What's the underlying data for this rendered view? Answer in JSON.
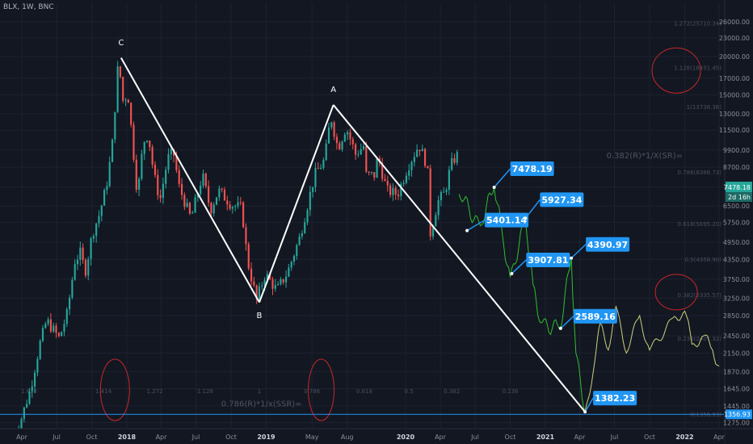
{
  "header": {
    "symbol_label": "BLX, 1W, BNC"
  },
  "chart_data": {
    "type": "candlestick",
    "title": "BLX, 1W, BNC",
    "xlabel": "",
    "ylabel": "",
    "y_scale": "log",
    "ylim": [
      1290,
      30000
    ],
    "y_ticks": [
      1275,
      1445,
      1645,
      1870,
      2150,
      2450,
      2850,
      3250,
      3750,
      4350,
      4950,
      5750,
      6500,
      7500,
      8700,
      9900,
      11500,
      13000,
      15000,
      17000,
      20000,
      23000,
      26000
    ],
    "x_ticks": [
      {
        "label": "Apr",
        "date": "2017-04-01"
      },
      {
        "label": "Jul",
        "date": "2017-07-01"
      },
      {
        "label": "Oct",
        "date": "2017-10-01"
      },
      {
        "label": "2018",
        "date": "2018-01-01",
        "bold": true
      },
      {
        "label": "Apr",
        "date": "2018-04-01"
      },
      {
        "label": "Jul",
        "date": "2018-07-01"
      },
      {
        "label": "Oct",
        "date": "2018-10-01"
      },
      {
        "label": "2019",
        "date": "2019-01-01",
        "bold": true
      },
      {
        "label": "May",
        "date": "2019-05-01"
      },
      {
        "label": "Aug",
        "date": "2019-08-01"
      },
      {
        "label": "2020",
        "date": "2020-01-01",
        "bold": true
      },
      {
        "label": "Apr",
        "date": "2020-04-01"
      },
      {
        "label": "Jul",
        "date": "2020-07-01"
      },
      {
        "label": "Oct",
        "date": "2020-10-01"
      },
      {
        "label": "2021",
        "date": "2021-01-01",
        "bold": true
      },
      {
        "label": "Apr",
        "date": "2021-04-01"
      },
      {
        "label": "Jul",
        "date": "2021-07-01"
      },
      {
        "label": "Oct",
        "date": "2021-10-01"
      },
      {
        "label": "2022",
        "date": "2022-01-01",
        "bold": true
      },
      {
        "label": "Apr",
        "date": "2022-04-01"
      }
    ],
    "price_anchors": [
      [
        "2017-03-10",
        1150
      ],
      [
        "2017-04-01",
        1250
      ],
      [
        "2017-05-01",
        1650
      ],
      [
        "2017-05-25",
        2300
      ],
      [
        "2017-06-12",
        2750
      ],
      [
        "2017-07-15",
        2400
      ],
      [
        "2017-08-05",
        2900
      ],
      [
        "2017-08-25",
        4300
      ],
      [
        "2017-09-10",
        4600
      ],
      [
        "2017-09-20",
        3900
      ],
      [
        "2017-10-10",
        5300
      ],
      [
        "2017-10-28",
        6100
      ],
      [
        "2017-11-15",
        7500
      ],
      [
        "2017-11-30",
        10000
      ],
      [
        "2017-12-17",
        19500
      ],
      [
        "2017-12-30",
        14000
      ],
      [
        "2018-01-10",
        15500
      ],
      [
        "2018-01-20",
        11500
      ],
      [
        "2018-02-05",
        7000
      ],
      [
        "2018-02-20",
        10500
      ],
      [
        "2018-03-05",
        11200
      ],
      [
        "2018-03-20",
        8200
      ],
      [
        "2018-04-05",
        6800
      ],
      [
        "2018-04-25",
        9300
      ],
      [
        "2018-05-10",
        9700
      ],
      [
        "2018-05-25",
        7500
      ],
      [
        "2018-06-25",
        5900
      ],
      [
        "2018-07-25",
        8200
      ],
      [
        "2018-08-15",
        6300
      ],
      [
        "2018-09-05",
        7300
      ],
      [
        "2018-10-10",
        6550
      ],
      [
        "2018-11-05",
        6400
      ],
      [
        "2018-11-20",
        4300
      ],
      [
        "2018-12-14",
        3200
      ],
      [
        "2019-01-05",
        3900
      ],
      [
        "2019-02-05",
        3450
      ],
      [
        "2019-03-05",
        3950
      ],
      [
        "2019-04-05",
        5100
      ],
      [
        "2019-05-15",
        8200
      ],
      [
        "2019-06-10",
        9200
      ],
      [
        "2019-06-26",
        12800
      ],
      [
        "2019-07-15",
        10000
      ],
      [
        "2019-08-05",
        11800
      ],
      [
        "2019-08-30",
        9600
      ],
      [
        "2019-09-20",
        10200
      ],
      [
        "2019-09-26",
        8200
      ],
      [
        "2019-10-20",
        8200
      ],
      [
        "2019-10-27",
        9500
      ],
      [
        "2019-11-20",
        7300
      ],
      [
        "2019-12-18",
        7100
      ],
      [
        "2020-01-15",
        8800
      ],
      [
        "2020-02-12",
        10300
      ],
      [
        "2020-03-05",
        8800
      ],
      [
        "2020-03-13",
        5300
      ],
      [
        "2020-04-01",
        6700
      ],
      [
        "2020-04-20",
        7200
      ],
      [
        "2020-05-05",
        8800
      ],
      [
        "2020-05-20",
        9500
      ]
    ],
    "lines": [
      {
        "name": "C-B",
        "points": [
          [
            "2017-12-17",
            19800
          ],
          [
            "2018-12-14",
            3150
          ]
        ]
      },
      {
        "name": "B-A",
        "points": [
          [
            "2018-12-14",
            3150
          ],
          [
            "2019-06-26",
            13900
          ]
        ]
      },
      {
        "name": "A-D",
        "points": [
          [
            "2019-06-26",
            13900
          ],
          [
            "2021-04-15",
            1382.23
          ]
        ]
      }
    ],
    "point_labels": [
      {
        "text": "C",
        "date": "2017-12-17",
        "price": 21800
      },
      {
        "text": "B",
        "date": "2018-12-14",
        "price": 2800
      },
      {
        "text": "A",
        "date": "2019-06-26",
        "price": 15300
      }
    ],
    "projection_green": [
      [
        "2020-05-20",
        7100
      ],
      [
        "2020-07-15",
        5600
      ],
      [
        "2020-08-20",
        7478.19
      ],
      [
        "2020-09-10",
        5300
      ],
      [
        "2020-10-01",
        3800
      ],
      [
        "2020-11-10",
        5927.34
      ],
      [
        "2020-11-30",
        3600
      ],
      [
        "2020-12-20",
        2700
      ],
      [
        "2021-02-10",
        2600
      ],
      [
        "2021-03-10",
        4390.97
      ],
      [
        "2021-03-22",
        2150
      ],
      [
        "2021-04-15",
        1382.23
      ]
    ],
    "projection_yellow": [
      [
        "2021-04-15",
        1382.23
      ],
      [
        "2021-05-10",
        2000
      ],
      [
        "2021-05-25",
        2700
      ],
      [
        "2021-06-15",
        2200
      ],
      [
        "2021-07-05",
        3050
      ],
      [
        "2021-08-01",
        2150
      ],
      [
        "2021-09-05",
        2850
      ],
      [
        "2021-10-01",
        2200
      ],
      [
        "2021-12-01",
        2800
      ],
      [
        "2022-01-01",
        2950
      ],
      [
        "2022-01-20",
        2300
      ],
      [
        "2022-02-20",
        2450
      ],
      [
        "2022-03-15",
        2200
      ],
      [
        "2022-04-01",
        1950
      ]
    ],
    "callouts": [
      {
        "label": "7478.19",
        "date": "2020-08-20",
        "price": 7478.19
      },
      {
        "label": "5401.14",
        "date": "2020-06-10",
        "price": 5401.14
      },
      {
        "label": "5927.34",
        "date": "2020-11-10",
        "price": 5927.34
      },
      {
        "label": "3907.81",
        "date": "2020-10-05",
        "price": 3907.81
      },
      {
        "label": "4390.97",
        "date": "2021-03-10",
        "price": 4390.97
      },
      {
        "label": "2589.16",
        "date": "2021-02-10",
        "price": 2589.16
      },
      {
        "label": "1382.23",
        "date": "2021-04-15",
        "price": 1382.23
      }
    ],
    "horizontal_line": {
      "price": 1356.93,
      "label": "1356.93"
    },
    "last_price": {
      "value": "7478.18",
      "countdown": "2d 16h"
    },
    "fib_right": [
      {
        "text": "1.272(25710.34)",
        "price": 25710
      },
      {
        "text": "1.128(18451.45)",
        "price": 18451
      },
      {
        "text": "1(13738.36)",
        "price": 13738
      },
      {
        "text": "0.786(8388.73)",
        "price": 8388
      },
      {
        "text": "0.618(5695.20)",
        "price": 5695
      },
      {
        "text": "0.5(4358.90)",
        "price": 4359
      },
      {
        "text": "0.382(3335.57)",
        "price": 3336
      },
      {
        "text": "0.236(2407.32)",
        "price": 2407
      },
      {
        "text": "0(1356.93)",
        "price": 1357
      }
    ],
    "fib_bottom": [
      {
        "text": "1.618",
        "date": "2017-04-20"
      },
      {
        "text": "1.414",
        "date": "2017-11-01"
      },
      {
        "text": "1.272",
        "date": "2018-03-15"
      },
      {
        "text": "1.128",
        "date": "2018-07-25"
      },
      {
        "text": "1",
        "date": "2018-12-14"
      },
      {
        "text": "0.786",
        "date": "2019-05-01"
      },
      {
        "text": "0.618",
        "date": "2019-09-15"
      },
      {
        "text": "0.5",
        "date": "2020-01-10"
      },
      {
        "text": "0.382",
        "date": "2020-05-01"
      },
      {
        "text": "0.236",
        "date": "2020-10-01"
      }
    ],
    "annotations": [
      {
        "text": "0.382(R)*1/X(SR)=",
        "date": "2021-06-10",
        "price": 9300
      },
      {
        "text": "0.786(R)*1/x(SSR)=",
        "date": "2018-09-05",
        "price": 1440
      }
    ],
    "ellipses": [
      {
        "date": "2017-12-01",
        "price": 1630
      },
      {
        "date": "2019-05-25",
        "price": 1630
      },
      {
        "date": "2021-12-10",
        "price": 18000
      },
      {
        "date": "2021-12-10",
        "price": 3400
      }
    ],
    "colors": {
      "up": "#26a69a",
      "down": "#ef5350",
      "projection_green": "#2fbf2f",
      "projection_yellow": "#c9d27a",
      "callout": "#2196f3",
      "hline": "#2196f3",
      "circle": "#c62828",
      "bg": "#131722"
    }
  }
}
